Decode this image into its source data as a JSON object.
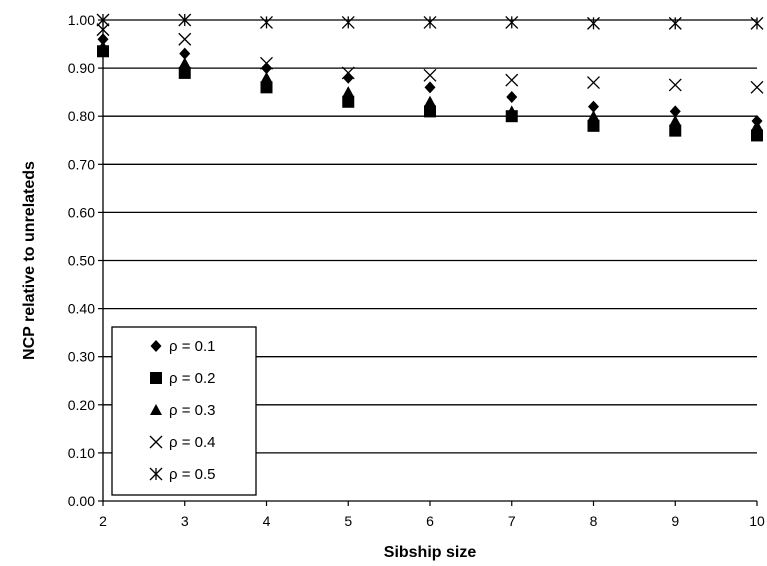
{
  "chart_data": {
    "type": "scatter",
    "xlabel": "Sibship size",
    "ylabel": "NCP relative to unrelateds",
    "x": [
      2,
      3,
      4,
      5,
      6,
      7,
      8,
      9,
      10
    ],
    "xlim": [
      2,
      10
    ],
    "ylim": [
      0.0,
      1.0
    ],
    "x_ticks": [
      "2",
      "3",
      "4",
      "5",
      "6",
      "7",
      "8",
      "9",
      "10"
    ],
    "y_ticks": [
      "0.00",
      "0.10",
      "0.20",
      "0.30",
      "0.40",
      "0.50",
      "0.60",
      "0.70",
      "0.80",
      "0.90",
      "1.00"
    ],
    "grid": "horizontal",
    "legend_position": "bottom-left",
    "series": [
      {
        "name": "ρ = 0.1",
        "marker": "diamond",
        "values": [
          0.96,
          0.93,
          0.9,
          0.88,
          0.86,
          0.84,
          0.82,
          0.81,
          0.79
        ]
      },
      {
        "name": "ρ = 0.2",
        "marker": "square",
        "values": [
          0.935,
          0.89,
          0.86,
          0.83,
          0.81,
          0.8,
          0.78,
          0.77,
          0.76
        ]
      },
      {
        "name": "ρ = 0.3",
        "marker": "triangle",
        "values": [
          0.945,
          0.91,
          0.88,
          0.85,
          0.83,
          0.81,
          0.8,
          0.79,
          0.78
        ]
      },
      {
        "name": "ρ = 0.4",
        "marker": "x",
        "values": [
          0.98,
          0.96,
          0.91,
          0.89,
          0.885,
          0.875,
          0.87,
          0.865,
          0.86
        ]
      },
      {
        "name": "ρ = 0.5",
        "marker": "asterisk",
        "values": [
          1.0,
          1.0,
          0.995,
          0.995,
          0.995,
          0.995,
          0.993,
          0.993,
          0.993
        ]
      }
    ],
    "colors": {
      "ink": "#000000",
      "background": "#ffffff"
    }
  }
}
